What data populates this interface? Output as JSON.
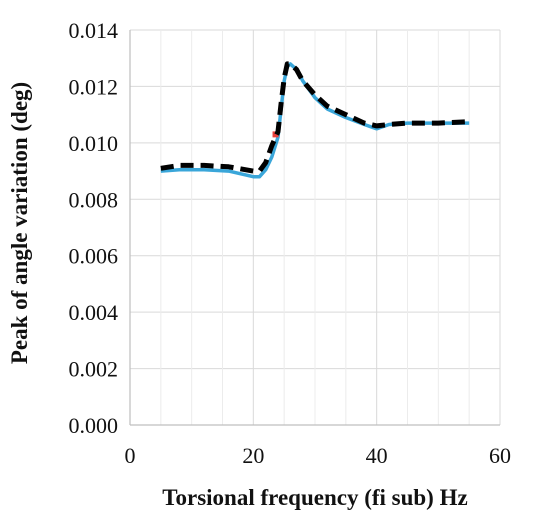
{
  "chart_data": {
    "type": "line",
    "title": "",
    "xlabel": "Torsional frequency (fi sub) Hz",
    "ylabel": "Peak of angle variation (deg)",
    "xlim": [
      0,
      60
    ],
    "ylim": [
      0.0,
      0.014
    ],
    "x_ticks": [
      0,
      20,
      40,
      60
    ],
    "x_tick_labels": [
      "0",
      "20",
      "40",
      "60"
    ],
    "y_ticks": [
      0.0,
      0.002,
      0.004,
      0.006,
      0.008,
      0.01,
      0.012,
      0.014
    ],
    "y_tick_labels": [
      "0.000",
      "0.002",
      "0.004",
      "0.006",
      "0.008",
      "0.010",
      "0.012",
      "0.014"
    ],
    "grid": true,
    "legend": "none",
    "series": [
      {
        "color": "#3aa6d9",
        "style": "solid",
        "x": [
          5,
          8,
          12,
          16,
          20,
          21,
          22,
          23,
          24,
          24.5,
          25,
          25.5,
          26,
          27,
          28,
          30,
          32,
          35,
          38,
          40,
          42,
          45,
          50,
          55
        ],
        "y": [
          0.009,
          0.00905,
          0.00905,
          0.009,
          0.0088,
          0.0088,
          0.00905,
          0.0095,
          0.0102,
          0.0112,
          0.0122,
          0.0127,
          0.0128,
          0.0126,
          0.0122,
          0.0116,
          0.0112,
          0.0109,
          0.01065,
          0.0105,
          0.01065,
          0.0107,
          0.0107,
          0.0107
        ]
      },
      {
        "color": "#e8403c",
        "style": "marker",
        "x": [
          23.6
        ],
        "y": [
          0.0103
        ]
      },
      {
        "color": "#000000",
        "style": "dashed",
        "x": [
          5,
          8,
          12,
          16,
          20,
          21,
          22,
          23,
          24,
          24.5,
          25,
          25.5,
          26,
          27,
          28,
          30,
          32,
          35,
          38,
          40,
          42,
          45,
          50,
          55
        ],
        "y": [
          0.0091,
          0.0092,
          0.0092,
          0.00915,
          0.009,
          0.009,
          0.0093,
          0.0099,
          0.0104,
          0.0114,
          0.0123,
          0.0128,
          0.0128,
          0.0126,
          0.0122,
          0.0117,
          0.0113,
          0.011,
          0.0107,
          0.0106,
          0.01065,
          0.0107,
          0.0107,
          0.01075
        ]
      }
    ]
  }
}
